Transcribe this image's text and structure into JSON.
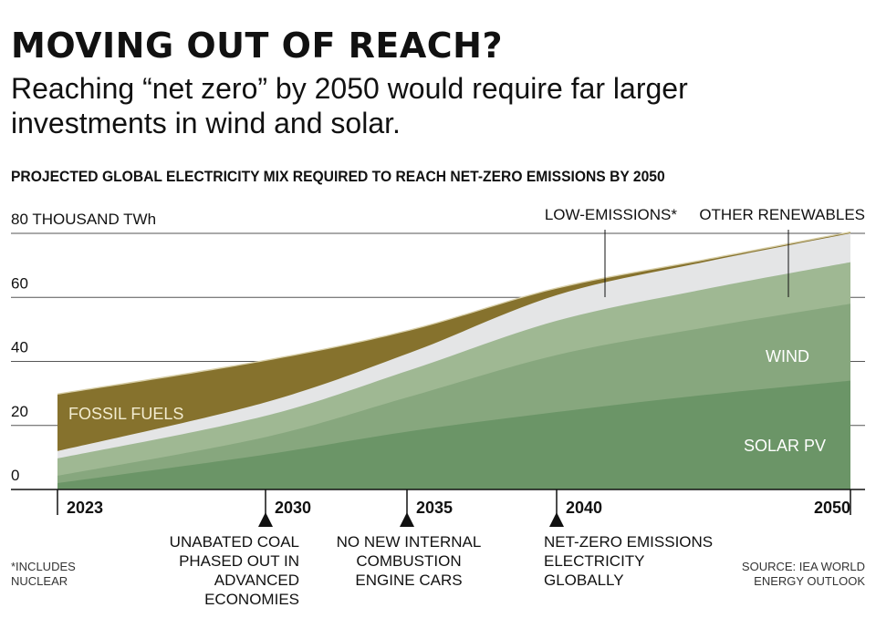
{
  "title": "MOVING OUT OF REACH?",
  "subtitle": "Reaching “net zero” by 2050 would require far larger investments in wind and solar.",
  "chart_data": {
    "type": "area",
    "stacked": true,
    "title": "PROJECTED GLOBAL ELECTRICITY MIX REQUIRED TO REACH NET-ZERO EMISSIONS BY 2050",
    "ylabel": "THOUSAND TWh",
    "ylim": [
      0,
      80
    ],
    "y_ticks": [
      {
        "value": 0,
        "label": "0"
      },
      {
        "value": 20,
        "label": "20"
      },
      {
        "value": 40,
        "label": "40"
      },
      {
        "value": 60,
        "label": "60"
      },
      {
        "value": 80,
        "label": "80 THOUSAND TWh"
      }
    ],
    "x_ticks": [
      "2023",
      "2030",
      "2035",
      "2040",
      "2050"
    ],
    "x": [
      2023,
      2030,
      2035,
      2040,
      2045,
      2050
    ],
    "grid": true,
    "series": [
      {
        "name": "SOLAR PV",
        "color": "#6b9567",
        "values": [
          2.0,
          10.8,
          18.2,
          24.2,
          29.5,
          34.0
        ]
      },
      {
        "name": "WIND",
        "color": "#87a77e",
        "values": [
          2.3,
          5.4,
          10.8,
          17.8,
          21.0,
          24.0
        ]
      },
      {
        "name": "OTHER RENEWABLES",
        "color": "#9fb893",
        "values": [
          5.4,
          6.6,
          8.3,
          10.7,
          12.0,
          13.0
        ]
      },
      {
        "name": "LOW-EMISSIONS*",
        "color": "#e4e5e6",
        "values": [
          2.3,
          4.2,
          5.4,
          8.0,
          8.5,
          9.0
        ]
      },
      {
        "name": "FOSSIL FUELS",
        "color": "#86722d",
        "values": [
          17.6,
          13.0,
          6.9,
          2.0,
          0.5,
          0.2
        ]
      }
    ],
    "labels_in_chart": {
      "fossil": "FOSSIL FUELS",
      "wind": "WIND",
      "solar": "SOLAR PV",
      "low": "LOW-EMISSIONS*",
      "other": "OTHER RENEWABLES"
    },
    "milestones": [
      {
        "year": 2030,
        "text": "UNABATED COAL PHASED OUT IN ADVANCED ECONOMIES"
      },
      {
        "year": 2035,
        "text": "NO NEW INTERNAL COMBUSTION ENGINE CARS"
      },
      {
        "year": 2040,
        "text": "NET-ZERO EMISSIONS ELECTRICITY GLOBALLY"
      }
    ]
  },
  "footnote": "*INCLUDES NUCLEAR",
  "source": "SOURCE: IEA WORLD ENERGY OUTLOOK"
}
